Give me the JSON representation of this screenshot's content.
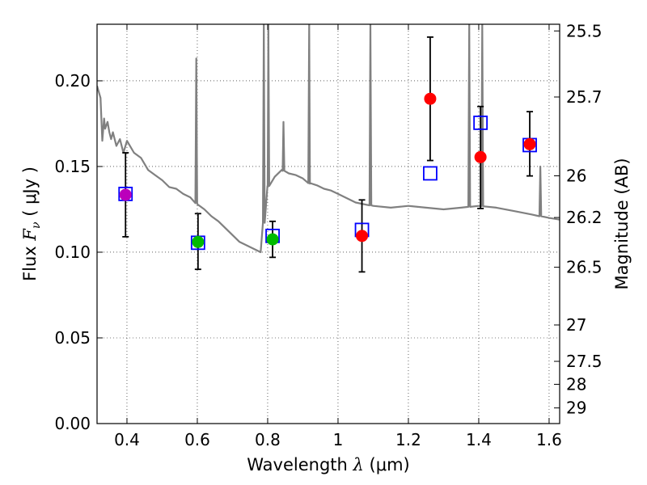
{
  "chart_data": {
    "type": "scatter",
    "xlabel": {
      "prefix": "Wavelength",
      "symbol": "λ",
      "unit": "(μm)"
    },
    "ylabel": {
      "prefix": "Flux",
      "symbol": "F",
      "subscript": "ν",
      "unit": "( μJy )"
    },
    "right_ylabel": "Magnitude (AB)",
    "xlim": [
      0.315,
      1.63
    ],
    "ylim": [
      0.0,
      0.233
    ],
    "grid": true,
    "x_ticks": [
      {
        "value": 0.4,
        "label": "0.4"
      },
      {
        "value": 0.6,
        "label": "0.6"
      },
      {
        "value": 0.8,
        "label": "0.8"
      },
      {
        "value": 1.0,
        "label": "1"
      },
      {
        "value": 1.2,
        "label": "1.2"
      },
      {
        "value": 1.4,
        "label": "1.4"
      },
      {
        "value": 1.6,
        "label": "1.6"
      }
    ],
    "y_ticks": [
      {
        "value": 0.0,
        "label": "0.00"
      },
      {
        "value": 0.05,
        "label": "0.05"
      },
      {
        "value": 0.1,
        "label": "0.10"
      },
      {
        "value": 0.15,
        "label": "0.15"
      },
      {
        "value": 0.2,
        "label": "0.20"
      }
    ],
    "right_ticks": [
      {
        "mag": 25.5,
        "label": "25.5"
      },
      {
        "mag": 25.7,
        "label": "25.7"
      },
      {
        "mag": 26.0,
        "label": "26"
      },
      {
        "mag": 26.2,
        "label": "26.2"
      },
      {
        "mag": 26.5,
        "label": "26.5"
      },
      {
        "mag": 27.0,
        "label": "27"
      },
      {
        "mag": 27.5,
        "label": "27.5"
      },
      {
        "mag": 28.0,
        "label": "28"
      },
      {
        "mag": 29.0,
        "label": "29"
      }
    ],
    "observed": [
      {
        "x": 0.396,
        "y": 0.1335,
        "err_low": 0.109,
        "err_high": 0.158,
        "color": "#bb00bb"
      },
      {
        "x": 0.602,
        "y": 0.106,
        "err_low": 0.09,
        "err_high": 0.1225,
        "color": "#00bb00"
      },
      {
        "x": 0.814,
        "y": 0.1075,
        "err_low": 0.097,
        "err_high": 0.118,
        "color": "#00bb00"
      },
      {
        "x": 1.068,
        "y": 0.1095,
        "err_low": 0.0885,
        "err_high": 0.1305,
        "color": "#ff0000"
      },
      {
        "x": 1.262,
        "y": 0.1895,
        "err_low": 0.1535,
        "err_high": 0.2255,
        "color": "#ff0000"
      },
      {
        "x": 1.405,
        "y": 0.1555,
        "err_low": 0.1255,
        "err_high": 0.185,
        "color": "#ff0000"
      },
      {
        "x": 1.545,
        "y": 0.163,
        "err_low": 0.1445,
        "err_high": 0.182,
        "color": "#ff0000"
      }
    ],
    "model_points": {
      "x": [
        0.396,
        0.602,
        0.814,
        1.068,
        1.262,
        1.405,
        1.545
      ],
      "y": [
        0.134,
        0.1055,
        0.1095,
        0.113,
        0.146,
        0.1755,
        0.1625
      ],
      "marker": "square",
      "color": "#0000ff"
    },
    "spectrum": {
      "color": "#808080",
      "x": [
        0.315,
        0.325,
        0.33,
        0.335,
        0.338,
        0.345,
        0.35,
        0.355,
        0.36,
        0.37,
        0.38,
        0.39,
        0.4,
        0.42,
        0.44,
        0.46,
        0.48,
        0.5,
        0.52,
        0.54,
        0.56,
        0.58,
        0.6,
        0.62,
        0.64,
        0.66,
        0.68,
        0.7,
        0.72,
        0.74,
        0.76,
        0.78,
        0.8,
        0.82,
        0.84,
        0.86,
        0.88,
        0.9,
        0.92,
        0.94,
        0.96,
        0.98,
        1.0,
        1.05,
        1.1,
        1.15,
        1.2,
        1.25,
        1.3,
        1.35,
        1.4,
        1.45,
        1.5,
        1.55,
        1.6,
        1.63
      ],
      "y": [
        0.197,
        0.19,
        0.165,
        0.178,
        0.172,
        0.176,
        0.17,
        0.166,
        0.17,
        0.162,
        0.166,
        0.158,
        0.165,
        0.158,
        0.155,
        0.148,
        0.145,
        0.142,
        0.138,
        0.137,
        0.134,
        0.132,
        0.128,
        0.125,
        0.121,
        0.118,
        0.114,
        0.11,
        0.106,
        0.104,
        0.102,
        0.1,
        0.138,
        0.144,
        0.148,
        0.146,
        0.145,
        0.143,
        0.14,
        0.139,
        0.137,
        0.136,
        0.134,
        0.129,
        0.127,
        0.126,
        0.127,
        0.126,
        0.125,
        0.126,
        0.127,
        0.126,
        0.124,
        0.122,
        0.12,
        0.119
      ],
      "spikes": [
        {
          "x": 0.597,
          "y": 0.213
        },
        {
          "x": 0.789,
          "y": 0.233
        },
        {
          "x": 0.802,
          "y": 0.233
        },
        {
          "x": 0.845,
          "y": 0.176
        },
        {
          "x": 0.918,
          "y": 0.233
        },
        {
          "x": 1.092,
          "y": 0.233
        },
        {
          "x": 1.373,
          "y": 0.233
        },
        {
          "x": 1.41,
          "y": 0.233
        },
        {
          "x": 1.575,
          "y": 0.15
        }
      ]
    }
  }
}
